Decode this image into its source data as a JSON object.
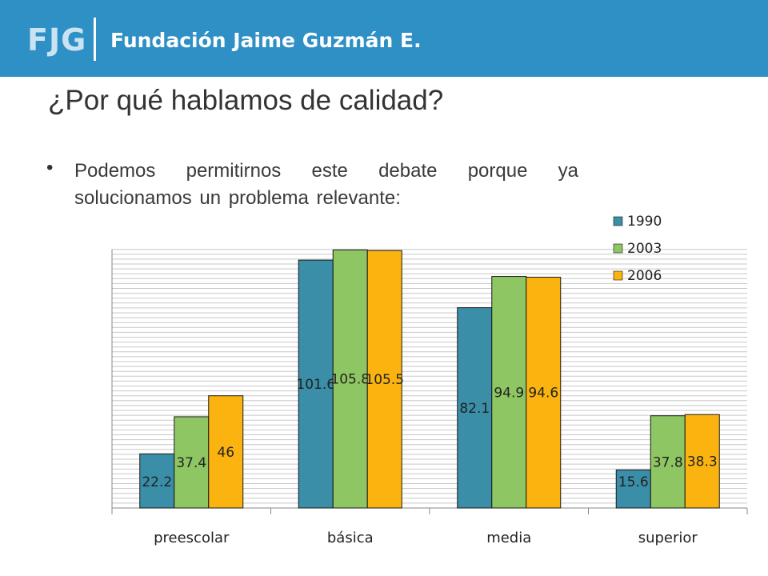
{
  "header": {
    "logo_mark": "FJG",
    "org_name": "Fundación Jaime Guzmán E.",
    "bar_color": "#2f90c6"
  },
  "slide": {
    "title": "¿Por qué hablamos de calidad?",
    "bullet": "Podemos permitirnos este debate porque ya solucionamos un problema relevante:"
  },
  "chart_data": {
    "type": "bar",
    "categories": [
      "preescolar",
      "básica",
      "media",
      "superior"
    ],
    "series": [
      {
        "name": "1990",
        "color": "#3a8ea8",
        "values": [
          22.2,
          101.6,
          82.1,
          15.6
        ]
      },
      {
        "name": "2003",
        "color": "#8ec663",
        "values": [
          37.4,
          105.8,
          94.9,
          37.8
        ]
      },
      {
        "name": "2006",
        "color": "#fbb40f",
        "values": [
          46,
          105.5,
          94.6,
          38.3
        ]
      }
    ],
    "ylim": [
      0,
      106
    ],
    "grid": true,
    "legend": "top-right",
    "data_labels": true
  }
}
